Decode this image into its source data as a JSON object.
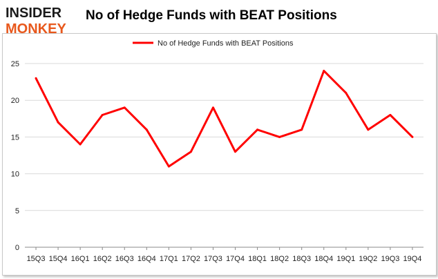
{
  "logo": {
    "line1": "INSIDER",
    "line2": "MONKEY"
  },
  "chart_data": {
    "type": "line",
    "title": "No of Hedge Funds with BEAT Positions",
    "xlabel": "",
    "ylabel": "",
    "categories": [
      "15Q3",
      "15Q4",
      "16Q1",
      "16Q2",
      "16Q3",
      "16Q4",
      "17Q1",
      "17Q2",
      "17Q3",
      "17Q4",
      "18Q1",
      "18Q2",
      "18Q3",
      "18Q4",
      "19Q1",
      "19Q2",
      "19Q3",
      "19Q4"
    ],
    "series": [
      {
        "name": "No of Hedge Funds with BEAT Positions",
        "values": [
          23,
          17,
          14,
          18,
          19,
          16,
          11,
          13,
          19,
          13,
          16,
          15,
          16,
          24,
          21,
          16,
          18,
          15
        ]
      }
    ],
    "ylim": [
      0,
      25
    ],
    "yticks": [
      0,
      5,
      10,
      15,
      20,
      25
    ],
    "grid": true,
    "legend": "top-center",
    "colors": {
      "series": "#ff0000",
      "grid": "#d9d9d9",
      "axis": "#888888"
    }
  }
}
